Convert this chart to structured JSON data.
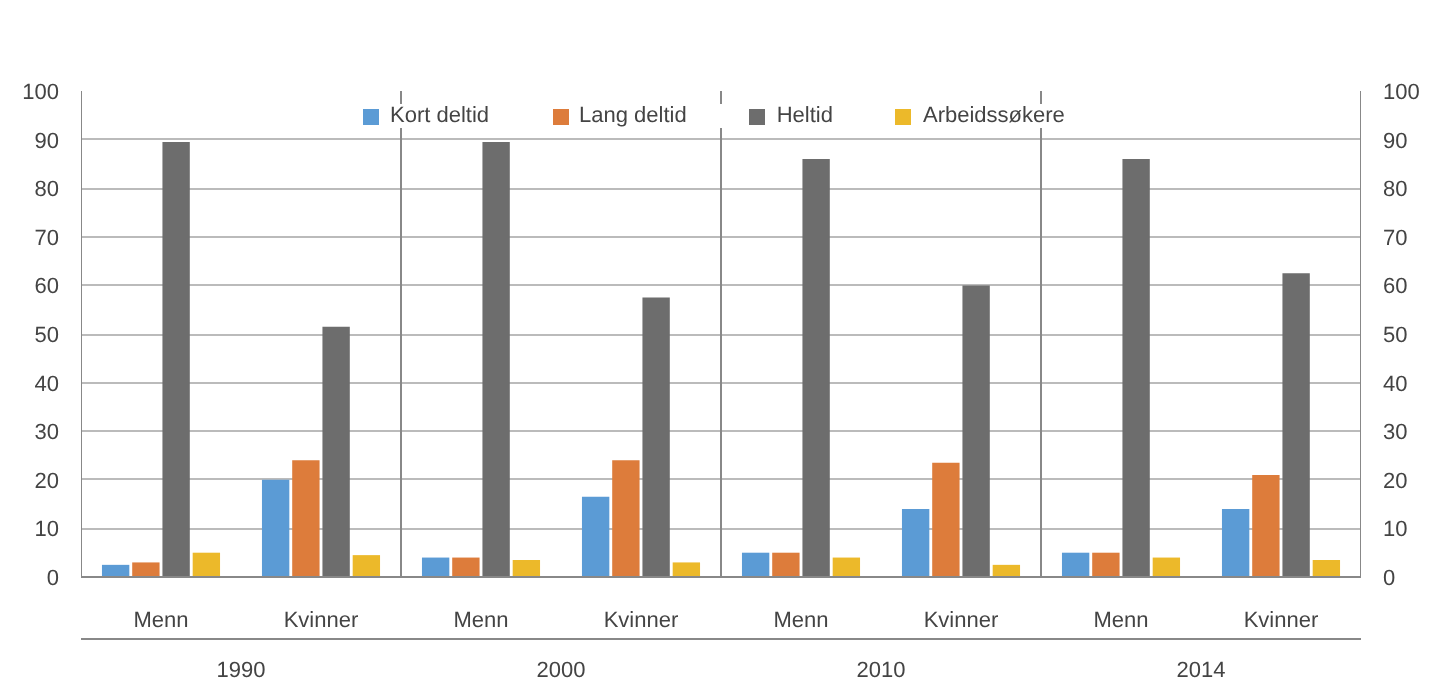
{
  "chart_data": {
    "type": "bar",
    "categories": [
      "Menn",
      "Kvinner",
      "Menn",
      "Kvinner",
      "Menn",
      "Kvinner",
      "Menn",
      "Kvinner"
    ],
    "series": [
      {
        "name": "Kort deltid",
        "color": "#5b9bd5",
        "values": [
          2.5,
          20,
          4,
          16.5,
          5,
          14,
          5,
          14
        ]
      },
      {
        "name": "Lang deltid",
        "color": "#dd7c3b",
        "values": [
          3,
          24,
          4,
          24,
          5,
          23.5,
          5,
          21
        ]
      },
      {
        "name": "Heltid",
        "color": "#6d6d6d",
        "values": [
          89.5,
          51.5,
          89.5,
          57.5,
          86,
          60,
          86,
          62.5
        ]
      },
      {
        "name": "Arbeidssøkere",
        "color": "#ecb92a",
        "values": [
          5,
          4.5,
          3.5,
          3,
          4,
          2.5,
          4,
          3.5
        ]
      }
    ],
    "annotations": [
      "1990",
      "2000",
      "2010",
      "2014"
    ],
    "ylim": [
      0,
      100
    ],
    "yticks": [
      0,
      10,
      20,
      30,
      40,
      50,
      60,
      70,
      80,
      90,
      100
    ],
    "y2lim": [
      0,
      100
    ],
    "y2ticks": [
      0,
      10,
      20,
      30,
      40,
      50,
      60,
      70,
      80,
      90,
      100
    ],
    "grid": "y",
    "legend": "top"
  }
}
